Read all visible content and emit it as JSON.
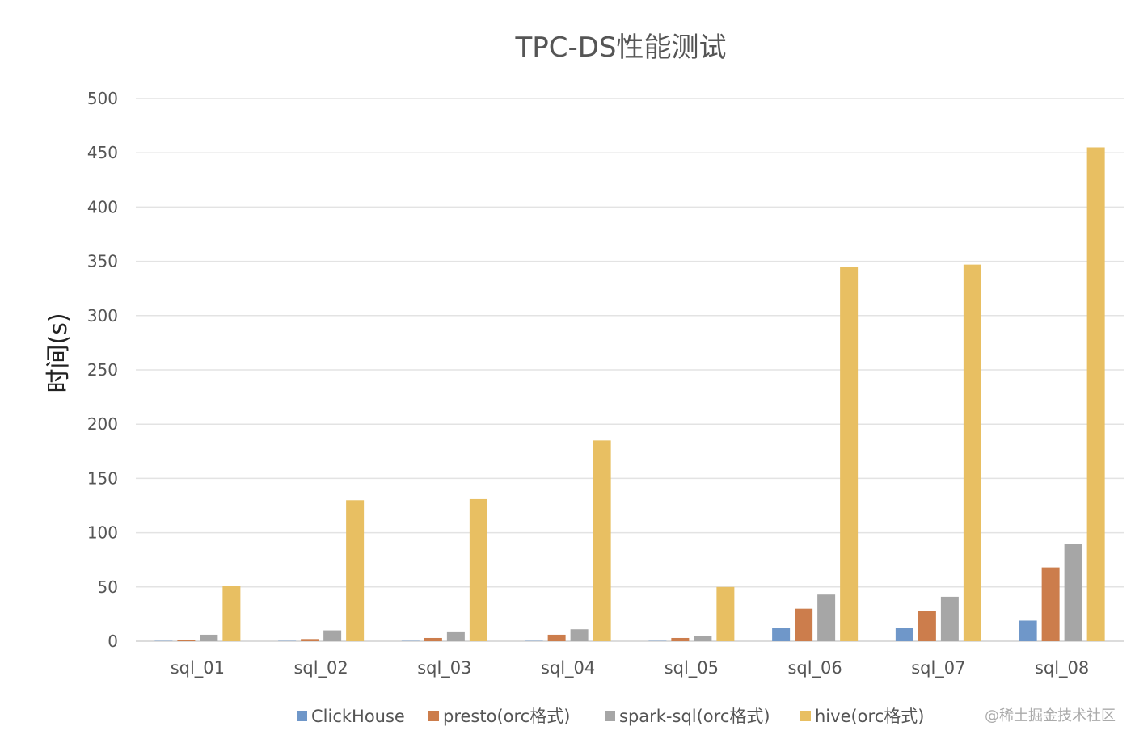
{
  "chart_data": {
    "type": "bar",
    "title": "TPC-DS性能测试",
    "ylabel": "时间(s)",
    "xlabel": "",
    "ylim": [
      0,
      500
    ],
    "yticks": [
      0,
      50,
      100,
      150,
      200,
      250,
      300,
      350,
      400,
      450,
      500
    ],
    "grid": true,
    "legend_position": "bottom",
    "categories": [
      "sql_01",
      "sql_02",
      "sql_03",
      "sql_04",
      "sql_05",
      "sql_06",
      "sql_07",
      "sql_08"
    ],
    "series": [
      {
        "name": "ClickHouse",
        "color": "#6f97c9",
        "values": [
          0.3,
          0.3,
          0.3,
          0.3,
          0.3,
          12,
          12,
          19
        ]
      },
      {
        "name": "presto(orc格式)",
        "color": "#cc7d4c",
        "values": [
          1,
          2,
          3,
          6,
          3,
          30,
          28,
          68
        ]
      },
      {
        "name": "spark-sql(orc格式)",
        "color": "#a6a6a6",
        "values": [
          6,
          10,
          9,
          11,
          5,
          43,
          41,
          90
        ]
      },
      {
        "name": "hive(orc格式)",
        "color": "#e8bf62",
        "values": [
          51,
          130,
          131,
          185,
          50,
          345,
          347,
          455
        ]
      }
    ]
  },
  "watermark": "@稀土掘金技术社区"
}
